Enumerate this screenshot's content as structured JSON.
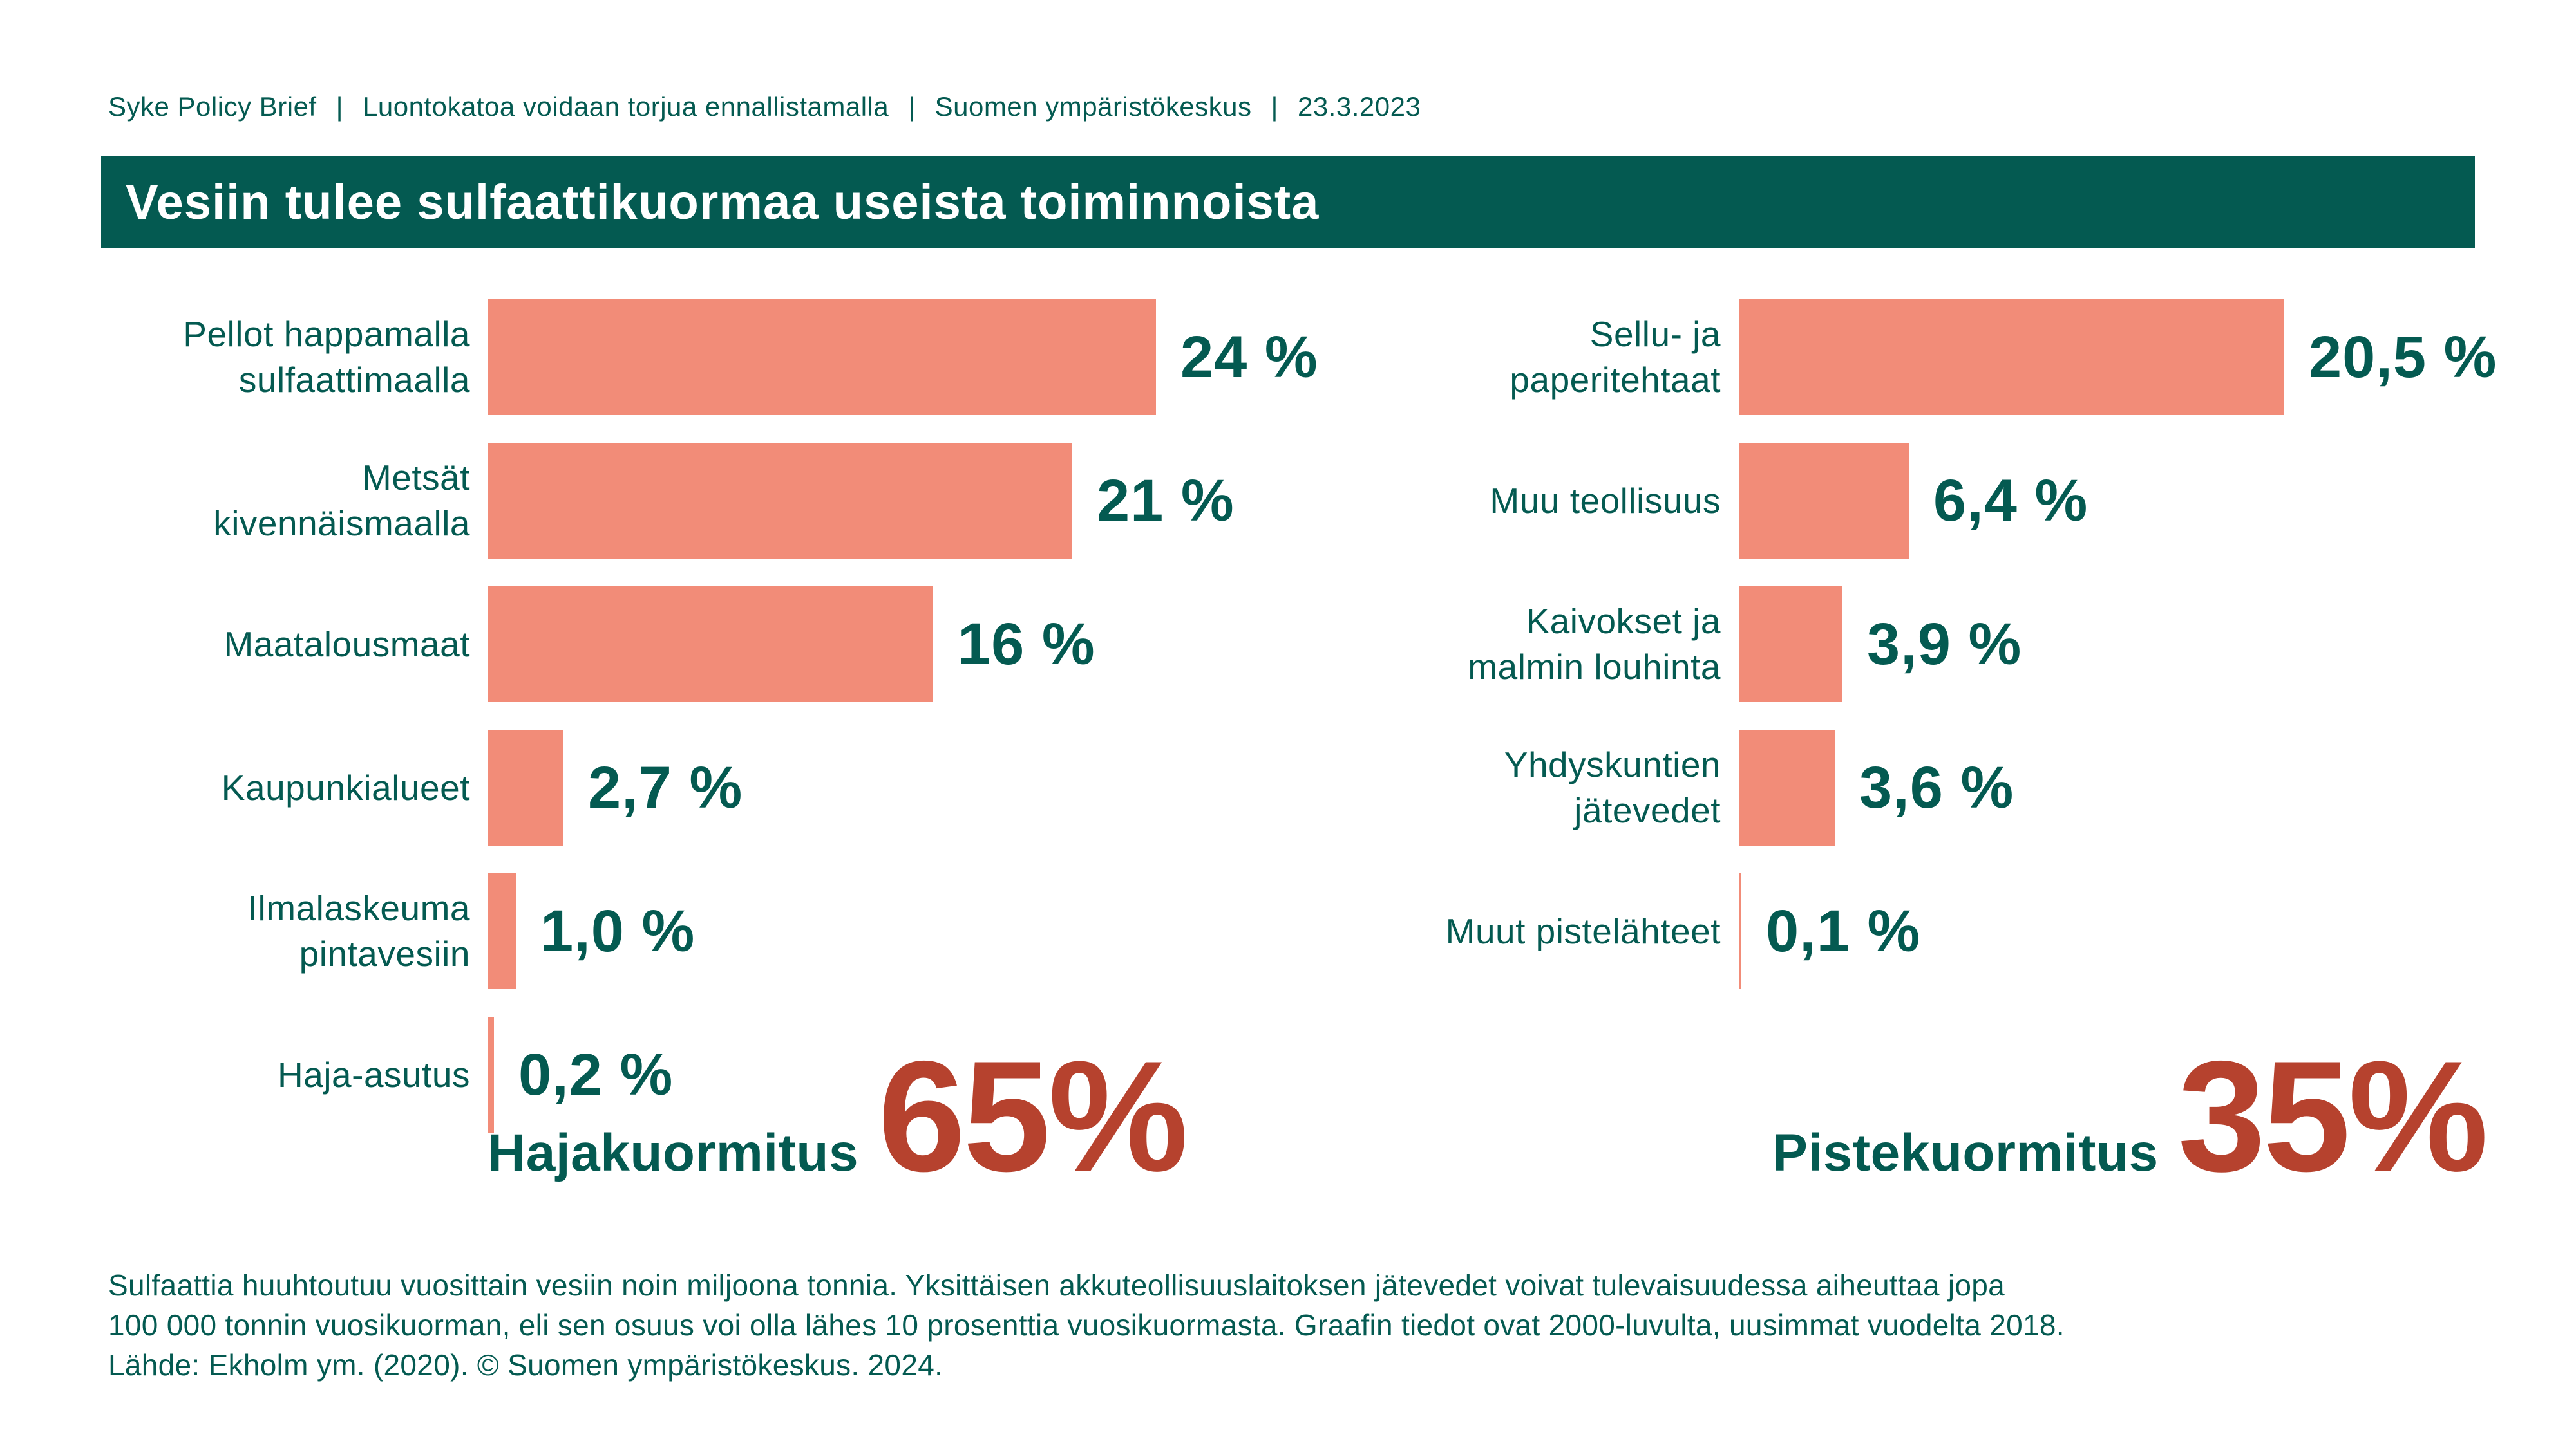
{
  "header": {
    "segments": [
      "Syke Policy Brief",
      "Luontokatoa voidaan torjua ennallistamalla",
      "Suomen ympäristökeskus",
      "23.3.2023"
    ],
    "separator": "|"
  },
  "title": {
    "text": "Vesiin tulee sulfaattikuormaa useista toiminnoista"
  },
  "colors": {
    "teal": "#045A51",
    "salmon": "#F28C78",
    "rust": "#B6422E",
    "background": "#FFFFFF"
  },
  "chart_data": [
    {
      "type": "bar",
      "orientation": "horizontal",
      "title": "Hajakuormitus",
      "group_label": "Hajakuormitus",
      "group_total_label": "65%",
      "group_total_value": 65,
      "unit": "%",
      "value_axis_range": [
        0,
        24
      ],
      "grid": false,
      "categories": [
        "Pellot happamalla\nsulfaattimaalla",
        "Metsät\nkivennäismaalla",
        "Maatalousmaat",
        "Kaupunkialueet",
        "Ilmalaskeuma\npintavesiin",
        "Haja-asutus"
      ],
      "values": [
        24,
        21,
        16,
        2.7,
        1.0,
        0.2
      ],
      "value_labels": [
        "24 %",
        "21 %",
        "16 %",
        "2,7 %",
        "1,0 %",
        "0,2 %"
      ]
    },
    {
      "type": "bar",
      "orientation": "horizontal",
      "title": "Pistekuormitus",
      "group_label": "Pistekuormitus",
      "group_total_label": "35%",
      "group_total_value": 35,
      "unit": "%",
      "value_axis_range": [
        0,
        20.5
      ],
      "grid": false,
      "categories": [
        "Sellu- ja\npaperitehtaat",
        "Muu teollisuus",
        "Kaivokset ja\nmalmin louhinta",
        "Yhdyskuntien\njätevedet",
        "Muut pistelähteet"
      ],
      "values": [
        20.5,
        6.4,
        3.9,
        3.6,
        0.1
      ],
      "value_labels": [
        "20,5 %",
        "6,4 %",
        "3,9 %",
        "3,6 %",
        "0,1 %"
      ]
    }
  ],
  "footer": {
    "lines": [
      "Sulfaattia huuhtoutuu vuosittain vesiin noin miljoona tonnia. Yksittäisen akkuteollisuuslaitoksen jätevedet voivat tulevaisuudessa aiheuttaa jopa",
      "100 000 tonnin vuosikuorman, eli sen osuus voi olla lähes 10 prosenttia vuosikuormasta. Graafin tiedot ovat 2000-luvulta, uusimmat vuodelta 2018.",
      "Lähde: Ekholm ym. (2020). © Suomen ympäristökeskus. 2024."
    ]
  }
}
